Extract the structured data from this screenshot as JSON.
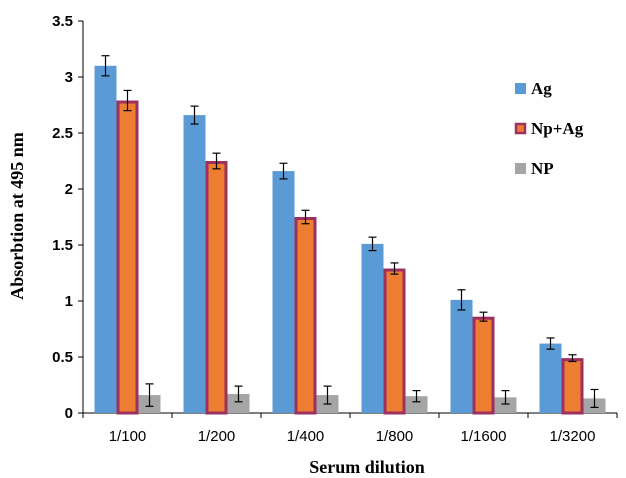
{
  "chart_data": {
    "type": "bar",
    "xlabel": "Serum dilution",
    "ylabel": "Absorbtion  at 495 nm",
    "ylim": [
      0,
      3.5
    ],
    "yticks": [
      "0",
      "0.5",
      "1",
      "1.5",
      "2",
      "2.5",
      "3",
      "3.5"
    ],
    "ytick_values": [
      0,
      0.5,
      1,
      1.5,
      2,
      2.5,
      3,
      3.5
    ],
    "categories": [
      "1/100",
      "1/200",
      "1/400",
      "1/800",
      "1/1600",
      "1/3200"
    ],
    "legend_position": "right",
    "grid": false,
    "series": [
      {
        "name": "Ag",
        "color": "#5b9bd5",
        "border": "#5b9bd5",
        "values": [
          3.1,
          2.66,
          2.16,
          1.51,
          1.01,
          0.62
        ],
        "errors": [
          0.09,
          0.08,
          0.07,
          0.06,
          0.09,
          0.05
        ]
      },
      {
        "name": "Np+Ag",
        "color": "#ed7d31",
        "border": "#9e3060",
        "values": [
          2.79,
          2.25,
          1.75,
          1.29,
          0.86,
          0.49
        ],
        "errors": [
          0.09,
          0.07,
          0.06,
          0.05,
          0.04,
          0.03
        ]
      },
      {
        "name": "NP",
        "color": "#a5a5a5",
        "border": "#a5a5a5",
        "values": [
          0.16,
          0.17,
          0.16,
          0.15,
          0.14,
          0.13
        ],
        "errors": [
          0.1,
          0.07,
          0.08,
          0.05,
          0.06,
          0.08
        ]
      }
    ]
  }
}
